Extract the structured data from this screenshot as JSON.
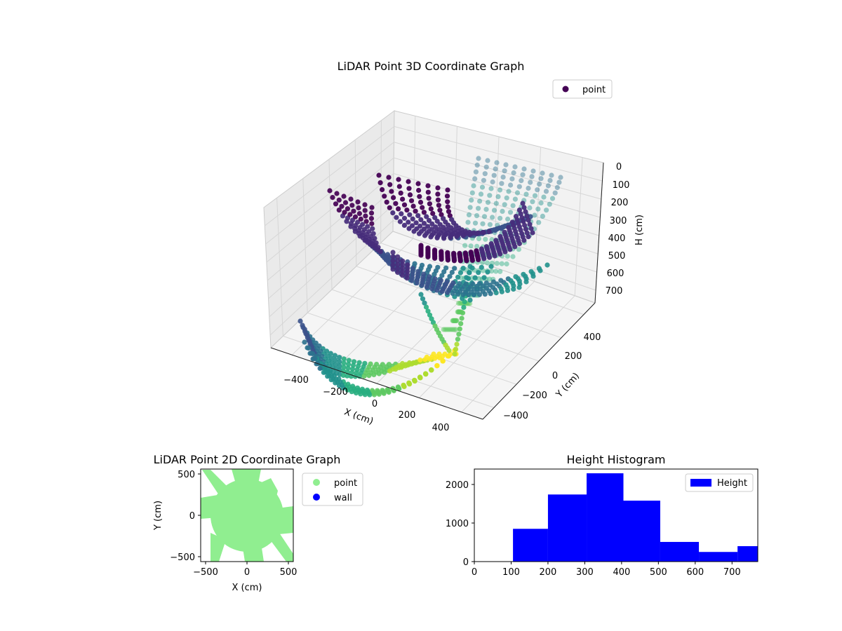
{
  "colors": {
    "viridis": [
      "#440154",
      "#472d7b",
      "#3b528b",
      "#2c728e",
      "#21918c",
      "#28ae80",
      "#5ec962",
      "#addc30",
      "#fde725"
    ],
    "point_2d": "#90ee90",
    "wall": "#0000ff",
    "hist": "#0000ff"
  },
  "chart_data": [
    {
      "type": "scatter3d",
      "title": "LiDAR Point 3D Coordinate Graph",
      "xlabel": "X (cm)",
      "ylabel": "Y (cm)",
      "zlabel": "H (cm)",
      "xticks": [
        "−400",
        "−200",
        "0",
        "200",
        "400"
      ],
      "yticks": [
        "−400",
        "−200",
        "0",
        "200",
        "400"
      ],
      "zticks": [
        "0",
        "100",
        "200",
        "300",
        "400",
        "500",
        "600",
        "700"
      ],
      "xlim": [
        -520,
        520
      ],
      "ylim": [
        -520,
        520
      ],
      "zlim": [
        0,
        780
      ],
      "zaxis_inverted": true,
      "colormap": "viridis (by height)",
      "legend": [
        "point"
      ],
      "series": [
        {
          "name": "point",
          "x_range": [
            -450,
            450
          ],
          "y_range": [
            -450,
            450
          ],
          "h_range": [
            100,
            780
          ]
        }
      ]
    },
    {
      "type": "scatter",
      "title": "LiDAR Point 2D Coordinate Graph",
      "xlabel": "X (cm)",
      "ylabel": "Y (cm)",
      "xticks": [
        "−500",
        "0",
        "500"
      ],
      "yticks": [
        "−500",
        "0",
        "500"
      ],
      "xlim": [
        -560,
        560
      ],
      "ylim": [
        -560,
        560
      ],
      "legend": [
        "point",
        "wall"
      ],
      "series": [
        {
          "name": "point",
          "color": "#90ee90"
        },
        {
          "name": "wall",
          "color": "#0000ff"
        }
      ]
    },
    {
      "type": "bar",
      "title": "Height Histogram",
      "xlabel": "",
      "ylabel": "",
      "xticks": [
        "0",
        "100",
        "200",
        "300",
        "400",
        "500",
        "600",
        "700"
      ],
      "yticks": [
        "0",
        "1000",
        "2000"
      ],
      "xlim": [
        0,
        770
      ],
      "ylim": [
        0,
        2400
      ],
      "legend": [
        "Height"
      ],
      "bins": [
        {
          "x0": 105,
          "x1": 200,
          "count": 850
        },
        {
          "x0": 200,
          "x1": 305,
          "count": 1740
        },
        {
          "x0": 305,
          "x1": 405,
          "count": 2290
        },
        {
          "x0": 405,
          "x1": 505,
          "count": 1580
        },
        {
          "x0": 505,
          "x1": 610,
          "count": 510
        },
        {
          "x0": 610,
          "x1": 715,
          "count": 250
        },
        {
          "x0": 715,
          "x1": 770,
          "count": 400
        }
      ]
    }
  ]
}
